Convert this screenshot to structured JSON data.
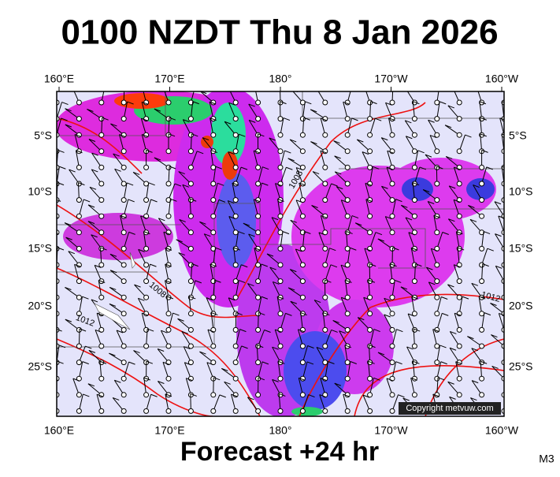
{
  "header": {
    "title": "0100 NZDT Thu 8 Jan 2026"
  },
  "longitudes": [
    "160°E",
    "170°E",
    "180°",
    "170°W",
    "160°W"
  ],
  "latitudes": [
    "5°S",
    "10°S",
    "15°S",
    "20°S",
    "25°S"
  ],
  "isobar_labels": [
    "1008",
    "1008",
    "1012",
    "1012"
  ],
  "copyright": "Copyright metvuw.com",
  "footer": {
    "caption": "Forecast +24 hr",
    "code": "M3"
  }
}
